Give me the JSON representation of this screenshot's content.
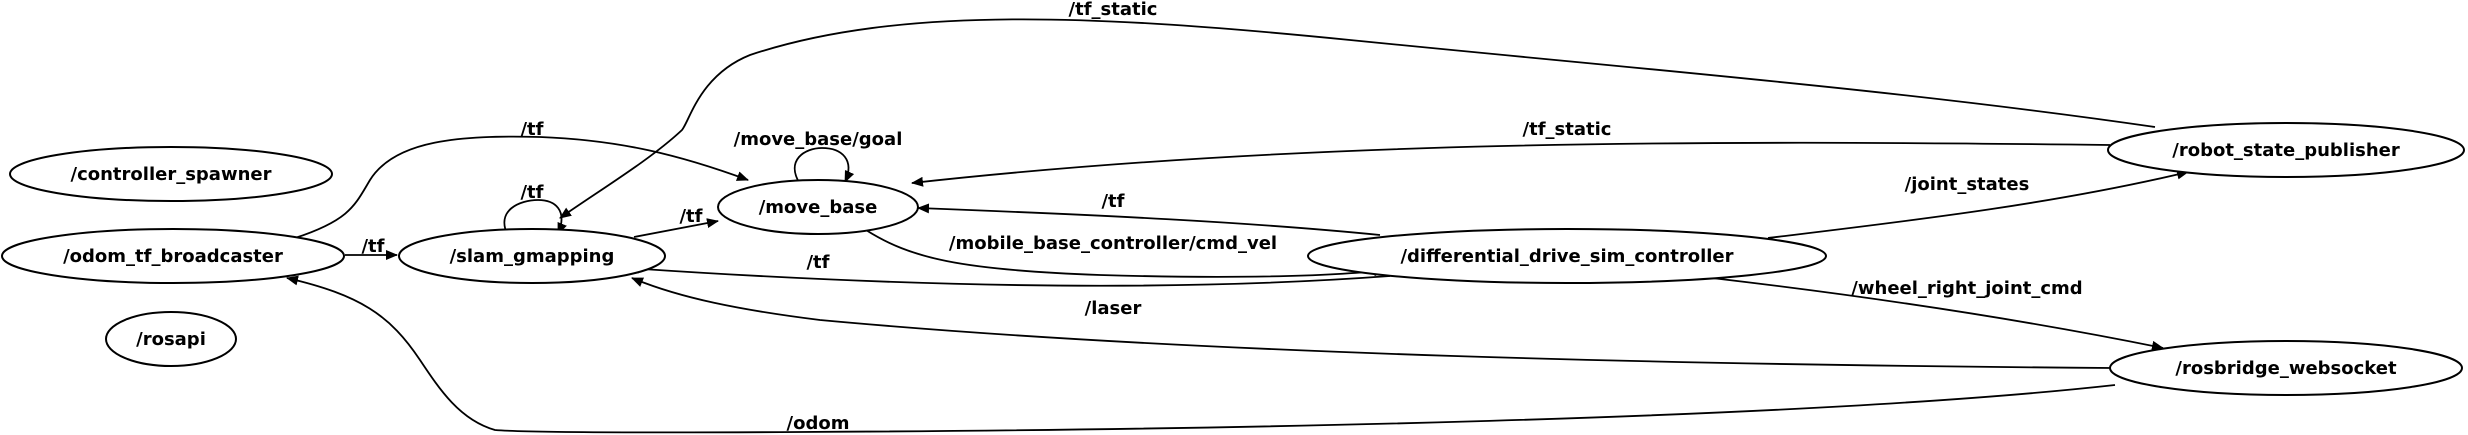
{
  "nodes": {
    "controller_spawner": "/controller_spawner",
    "odom_tf_broadcaster": "/odom_tf_broadcaster",
    "rosapi": "/rosapi",
    "slam_gmapping": "/slam_gmapping",
    "move_base": "/move_base",
    "differential_drive_sim_controller": "/differential_drive_sim_controller",
    "robot_state_publisher": "/robot_state_publisher",
    "rosbridge_websocket": "/rosbridge_websocket"
  },
  "edges": {
    "tf_static_top": "/tf_static",
    "tf_static_mid": "/tf_static",
    "tf_odom_to_move_base": "/tf",
    "tf_odom_to_slam": "/tf",
    "tf_slam_self": "/tf",
    "tf_slam_to_move_base": "/tf",
    "move_base_goal": "/move_base/goal",
    "tf_diff_to_move_base": "/tf",
    "cmd_vel": "/mobile_base_controller/cmd_vel",
    "tf_diff_to_slam": "/tf",
    "laser": "/laser",
    "joint_states": "/joint_states",
    "wheel_right_joint_cmd": "/wheel_right_joint_cmd",
    "odom": "/odom"
  }
}
